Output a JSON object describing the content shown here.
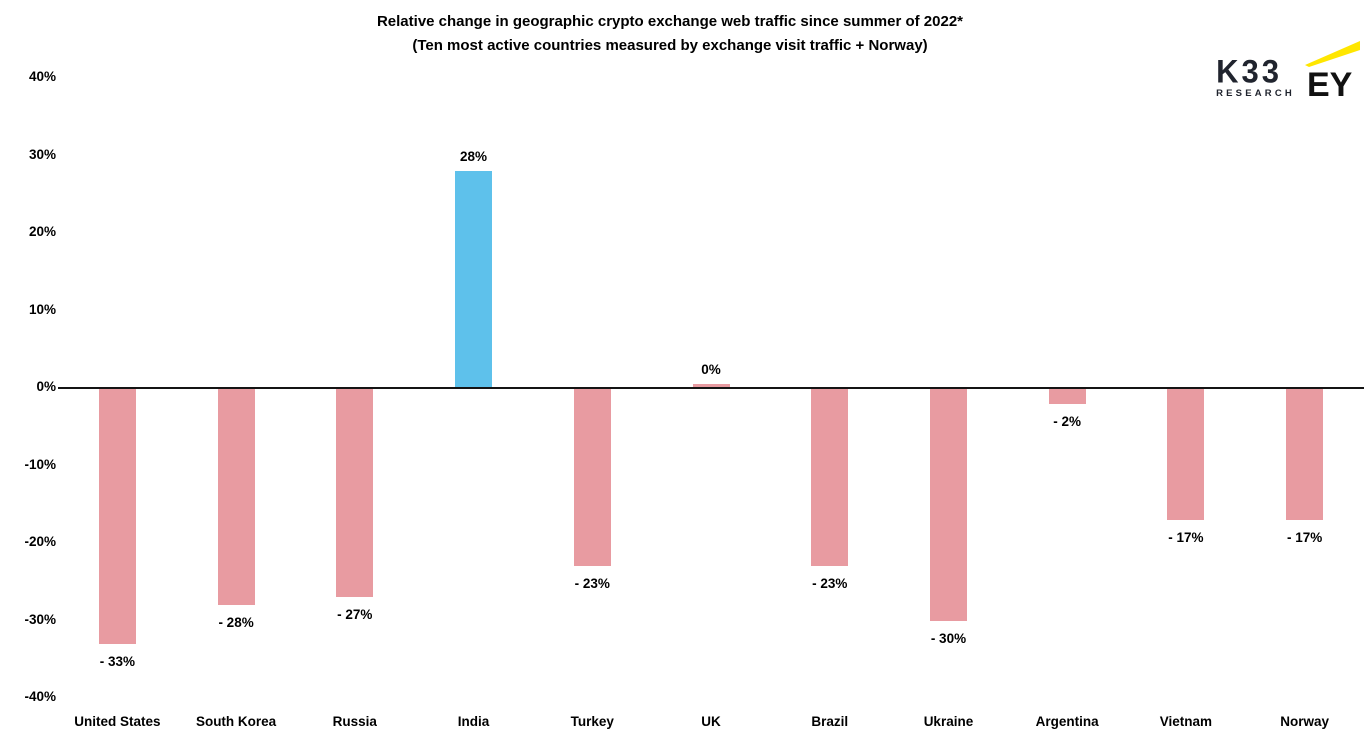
{
  "title": {
    "line1": "Relative change in geographic crypto exchange web traffic since summer of 2022*",
    "line2": "(Ten most active countries measured by exchange visit traffic + Norway)"
  },
  "branding": {
    "k33_text": "K33",
    "k33_sub": "RESEARCH",
    "k33_color": "#20242e",
    "ey_text": "EY",
    "ey_beam_color": "#FFE600",
    "ey_text_color": "#111111"
  },
  "chart_data": {
    "type": "bar",
    "title": "Relative change in geographic crypto exchange web traffic since summer of 2022*",
    "subtitle": "(Ten most active countries measured by exchange visit traffic + Norway)",
    "categories": [
      "United States",
      "South Korea",
      "Russia",
      "India",
      "Turkey",
      "UK",
      "Brazil",
      "Ukraine",
      "Argentina",
      "Vietnam",
      "Norway"
    ],
    "values": [
      -33,
      -28,
      -27,
      28,
      -23,
      0,
      -23,
      -30,
      -2,
      -17,
      -17
    ],
    "value_labels": [
      "- 33%",
      "- 28%",
      "- 27%",
      "28%",
      "- 23%",
      "0%",
      "- 23%",
      "- 30%",
      "- 2%",
      "- 17%",
      "- 17%"
    ],
    "xlabel": "",
    "ylabel": "",
    "ylim": [
      -40,
      40
    ],
    "ytick_values": [
      40,
      30,
      20,
      10,
      0,
      -10,
      -20,
      -30,
      -40
    ],
    "ytick_labels": [
      "40%",
      "30%",
      "20%",
      "10%",
      "0%",
      "-10%",
      "-20%",
      "-30%",
      "-40%"
    ],
    "grid": false,
    "legend": null,
    "colors": {
      "positive": "#5EC1EB",
      "negative": "#E89BA1",
      "axis": "#141414",
      "label": "#000000"
    }
  }
}
